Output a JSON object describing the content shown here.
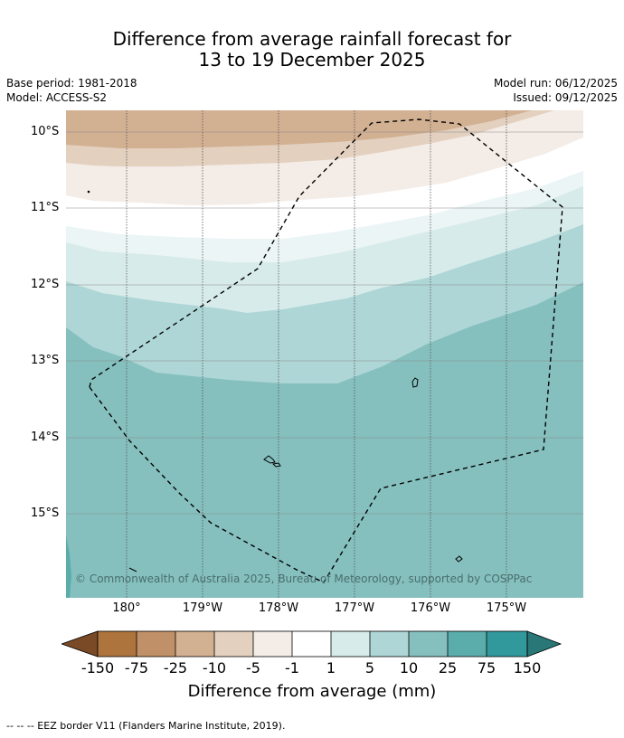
{
  "title_line1": "Difference from average rainfall forecast for",
  "title_line2": "13 to 19 December 2025",
  "base_period": "Base period: 1981-2018",
  "model": "Model: ACCESS-S2",
  "model_run": "Model run: 06/12/2025",
  "issued": "Issued: 09/12/2025",
  "lat_labels": [
    "10°S",
    "11°S",
    "12°S",
    "13°S",
    "14°S",
    "15°S"
  ],
  "lon_labels": [
    "180°",
    "179°W",
    "178°W",
    "177°W",
    "176°W",
    "175°W"
  ],
  "copyright": "© Commonwealth of Australia 2025, Bureau of Meteorology, supported by COSPPac",
  "colorbar": {
    "ticks": [
      "-150",
      "-75",
      "-25",
      "-10",
      "-5",
      "-1",
      "1",
      "5",
      "10",
      "25",
      "75",
      "150"
    ],
    "colors": [
      "#7a4a26",
      "#ad743d",
      "#c09168",
      "#d2b092",
      "#e3d0bf",
      "#f4ece6",
      "#ffffff",
      "#d7ebea",
      "#aed6d6",
      "#85c0bf",
      "#5aadab",
      "#31999b",
      "#2a7777"
    ],
    "title": "Difference from average (mm)"
  },
  "footnote": "--  --  -- EEZ border V11 (Flanders Marine Institute, 2019)."
}
